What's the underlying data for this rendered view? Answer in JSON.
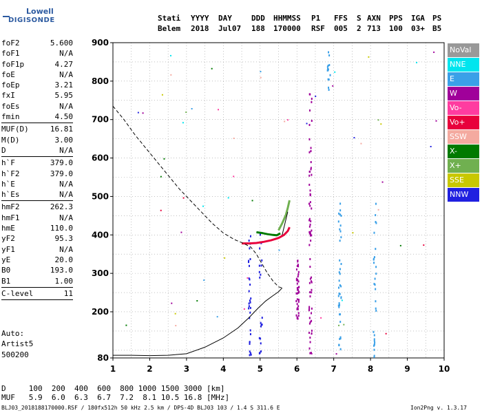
{
  "logo": {
    "line1": "Lowell",
    "line2": "DIGISONDE"
  },
  "header": {
    "labels": [
      "Stati",
      "YYYY",
      "DAY",
      "DDD",
      "HHMMSS",
      "P1",
      "FFS",
      "S",
      "AXN",
      "PPS",
      "IGA",
      "PS"
    ],
    "values": [
      "Belem",
      "2018",
      "Jul07",
      "188",
      "170000",
      "RSF",
      "005",
      "2",
      "713",
      "100",
      "03+",
      "B5"
    ]
  },
  "params": [
    {
      "label": "foF2",
      "value": "5.600"
    },
    {
      "label": "foF1",
      "value": "N/A"
    },
    {
      "label": "foF1p",
      "value": "4.27"
    },
    {
      "label": "foE",
      "value": "N/A"
    },
    {
      "label": "foEp",
      "value": "3.21"
    },
    {
      "label": "fxI",
      "value": "5.95"
    },
    {
      "label": "foEs",
      "value": "N/A"
    },
    {
      "label": "fmin",
      "value": "4.50"
    },
    {
      "sep": true
    },
    {
      "label": "MUF(D)",
      "value": "16.81"
    },
    {
      "label": "M(D)",
      "value": "3.00"
    },
    {
      "label": "D",
      "value": "N/A"
    },
    {
      "sep": true
    },
    {
      "label": "h`F",
      "value": "379.0"
    },
    {
      "label": "h`F2",
      "value": "379.0"
    },
    {
      "label": "h`E",
      "value": "N/A"
    },
    {
      "label": "h`Es",
      "value": "N/A"
    },
    {
      "sep": true
    },
    {
      "label": "hmF2",
      "value": "262.3"
    },
    {
      "label": "hmF1",
      "value": "N/A"
    },
    {
      "label": "hmE",
      "value": "110.0"
    },
    {
      "label": "yF2",
      "value": "95.3"
    },
    {
      "label": "yF1",
      "value": "N/A"
    },
    {
      "label": "yE",
      "value": "20.0"
    },
    {
      "label": "B0",
      "value": "193.0"
    },
    {
      "label": "B1",
      "value": "1.00"
    },
    {
      "sep": true
    },
    {
      "label": "C-level",
      "value": "11"
    },
    {
      "sep": true
    }
  ],
  "auto": [
    "Auto:",
    "Artist5",
    "500200"
  ],
  "legend": [
    {
      "label": "NoVal",
      "color": "#999999"
    },
    {
      "label": "NNE",
      "color": "#00e5ee"
    },
    {
      "label": "E",
      "color": "#3aa0e8"
    },
    {
      "label": "W",
      "color": "#a0009a"
    },
    {
      "label": "Vo-",
      "color": "#ff3ca0"
    },
    {
      "label": "Vo+",
      "color": "#e8003c"
    },
    {
      "label": "SSW",
      "color": "#f4aaa0"
    },
    {
      "label": "X-",
      "color": "#007a00"
    },
    {
      "label": "X+",
      "color": "#70b050"
    },
    {
      "label": "SSE",
      "color": "#c8c800"
    },
    {
      "label": "NNW",
      "color": "#2020e0"
    }
  ],
  "bottom": {
    "d_line": "D     100  200  400  600  800 1000 1500 3000 [km]",
    "muf_line": "MUF   5.9  6.0  6.3  6.7  7.2  8.1 10.5 16.8 [MHz]"
  },
  "footer": {
    "left": "BLJ03_2018188170000.RSF / 180fx512h 50 kHz 2.5 km / DPS-4D BLJ03 103 / 1.4 S 311.6 E",
    "right": "Ion2Png v. 1.3.17"
  },
  "chart_data": {
    "type": "scatter",
    "xlim": [
      1,
      10
    ],
    "ylim": [
      80,
      900
    ],
    "x_ticks": [
      "1",
      "2",
      "3",
      "4",
      "5",
      "6",
      "7",
      "8",
      "9",
      "10"
    ],
    "y_ticks": [
      "80",
      "200",
      "300",
      "400",
      "500",
      "600",
      "700",
      "800",
      "900"
    ],
    "grid": true,
    "profile_dashed": [
      [
        1.0,
        735
      ],
      [
        1.3,
        700
      ],
      [
        1.6,
        660
      ],
      [
        1.9,
        625
      ],
      [
        2.2,
        590
      ],
      [
        2.5,
        555
      ],
      [
        2.8,
        520
      ],
      [
        3.1,
        490
      ],
      [
        3.4,
        460
      ],
      [
        3.7,
        430
      ],
      [
        4.0,
        405
      ],
      [
        4.3,
        388
      ],
      [
        4.55,
        378
      ],
      [
        4.75,
        368
      ],
      [
        4.9,
        350
      ],
      [
        5.05,
        325
      ],
      [
        5.2,
        300
      ],
      [
        5.35,
        280
      ],
      [
        5.5,
        265
      ],
      [
        5.6,
        262
      ]
    ],
    "profile_solid": [
      [
        1.0,
        87
      ],
      [
        1.5,
        87
      ],
      [
        2.0,
        86
      ],
      [
        2.5,
        87
      ],
      [
        3.0,
        91
      ],
      [
        3.5,
        108
      ],
      [
        4.0,
        132
      ],
      [
        4.4,
        158
      ],
      [
        4.7,
        185
      ],
      [
        4.95,
        210
      ],
      [
        5.15,
        228
      ],
      [
        5.35,
        242
      ],
      [
        5.5,
        252
      ],
      [
        5.6,
        262
      ]
    ],
    "trace_o": [
      [
        4.5,
        378
      ],
      [
        4.7,
        378
      ],
      [
        4.9,
        379
      ],
      [
        5.1,
        382
      ],
      [
        5.3,
        386
      ],
      [
        5.5,
        392
      ],
      [
        5.65,
        400
      ],
      [
        5.75,
        410
      ],
      [
        5.8,
        420
      ]
    ],
    "trace_x": [
      [
        4.9,
        407
      ],
      [
        5.05,
        405
      ],
      [
        5.2,
        402
      ],
      [
        5.35,
        400
      ],
      [
        5.45,
        399
      ],
      [
        5.55,
        404
      ]
    ],
    "trace_x2": [
      [
        5.5,
        412
      ],
      [
        5.6,
        430
      ],
      [
        5.7,
        452
      ],
      [
        5.75,
        470
      ],
      [
        5.8,
        490
      ]
    ],
    "trace_fit": [
      [
        5.6,
        400
      ],
      [
        5.65,
        420
      ],
      [
        5.75,
        460
      ]
    ],
    "markers": [
      [
        2.1,
        350
      ],
      [
        1.8,
        740
      ],
      [
        1.5,
        665
      ]
    ]
  }
}
